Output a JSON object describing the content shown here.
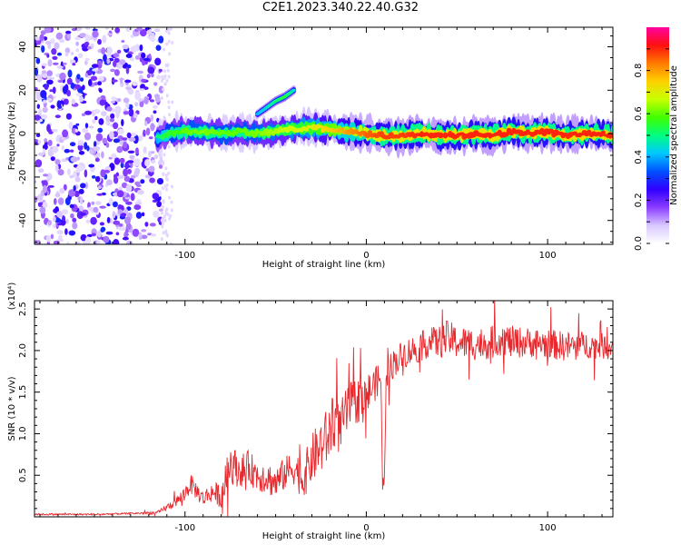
{
  "title": "C2E1.2023.340.22.40.G32",
  "chart_data": [
    {
      "type": "heatmap",
      "xlabel": "Height of straight line (km)",
      "ylabel": "Frequency (Hz)",
      "xlim": [
        -183,
        136
      ],
      "ylim": [
        -51,
        49
      ],
      "xticks": [
        -100,
        0,
        100
      ],
      "yticks": [
        -40,
        -20,
        0,
        20,
        40
      ],
      "colorbar": {
        "label": "Normalized spectral amplitude",
        "range": [
          0,
          1
        ],
        "ticks": [
          "0.0",
          "0.2",
          "0.4",
          "0.6",
          "0.8"
        ],
        "colors": [
          "#ffffff",
          "#d9c8ff",
          "#8a3cff",
          "#3000ff",
          "#0050ff",
          "#00c8ff",
          "#00ff80",
          "#40ff00",
          "#c8ff00",
          "#ffd000",
          "#ff7a00",
          "#ff1010",
          "#ff00a0"
        ]
      },
      "series": [
        {
          "type": "noise-region",
          "x_range": [
            -183,
            -113
          ],
          "frequency_range": [
            -51,
            49
          ],
          "amplitude_range": [
            0.05,
            0.3
          ]
        },
        {
          "type": "ridge",
          "x": [
            -115,
            -110,
            -100,
            -90,
            -80,
            -70,
            -60,
            -50,
            -40,
            -30,
            -20,
            -10,
            0,
            10,
            20,
            30,
            40,
            50,
            60,
            70,
            80,
            90,
            100,
            110,
            120,
            130,
            136
          ],
          "frequency": [
            -2,
            0,
            1,
            1,
            0,
            1,
            0,
            1,
            2,
            3,
            2,
            1,
            0,
            -1,
            -1,
            0,
            -1,
            -1,
            0,
            -1,
            1,
            0,
            1,
            -1,
            0,
            0,
            -1
          ],
          "peak_amplitude": [
            0.5,
            0.55,
            0.6,
            0.62,
            0.6,
            0.6,
            0.62,
            0.65,
            0.68,
            0.7,
            0.75,
            0.8,
            0.85,
            0.88,
            0.88,
            0.9,
            0.9,
            0.9,
            0.9,
            0.9,
            0.9,
            0.9,
            0.9,
            0.9,
            0.9,
            0.9,
            0.9
          ]
        },
        {
          "type": "branch",
          "x": [
            -60,
            -55,
            -50,
            -45,
            -40
          ],
          "frequency": [
            9,
            12,
            15,
            17,
            20
          ],
          "peak_amplitude": [
            0.4,
            0.45,
            0.5,
            0.55,
            0.45
          ]
        }
      ]
    },
    {
      "type": "line",
      "xlabel": "Height of straight line (km)",
      "ylabel": "SNR (10 * v/v)",
      "ylabel_multiplier": "(x10⁴)",
      "xlim": [
        -183,
        136
      ],
      "ylim": [
        0,
        2.6
      ],
      "xticks": [
        -100,
        0,
        100
      ],
      "yticks": [
        0.5,
        1.0,
        1.5,
        2.0,
        2.5
      ],
      "yticklabels": [
        "0.5",
        "1.0",
        "1.5",
        "2.0",
        "2.5"
      ],
      "color": "#e8282d",
      "x": [
        -183,
        -170,
        -150,
        -130,
        -115,
        -105,
        -100,
        -97,
        -90,
        -85,
        -80,
        -75,
        -70,
        -65,
        -60,
        -55,
        -50,
        -45,
        -40,
        -35,
        -30,
        -25,
        -20,
        -18,
        -15,
        -10,
        -5,
        0,
        3,
        5,
        8,
        9,
        10,
        11,
        12,
        15,
        20,
        25,
        30,
        35,
        40,
        45,
        50,
        60,
        70,
        75,
        80,
        90,
        100,
        110,
        120,
        130,
        136
      ],
      "y": [
        0.03,
        0.03,
        0.03,
        0.04,
        0.05,
        0.18,
        0.28,
        0.4,
        0.22,
        0.3,
        0.25,
        0.65,
        0.55,
        0.6,
        0.5,
        0.48,
        0.4,
        0.52,
        0.6,
        0.45,
        0.7,
        0.85,
        1.0,
        1.2,
        1.05,
        1.3,
        1.4,
        1.45,
        1.55,
        1.6,
        1.7,
        0.3,
        0.6,
        1.6,
        1.75,
        1.85,
        1.95,
        2.0,
        2.05,
        2.1,
        2.1,
        2.15,
        2.1,
        2.08,
        2.1,
        2.15,
        2.1,
        2.1,
        2.08,
        2.05,
        2.07,
        2.05,
        2.04
      ],
      "spread": [
        0.01,
        0.01,
        0.01,
        0.01,
        0.02,
        0.06,
        0.1,
        0.12,
        0.1,
        0.12,
        0.15,
        0.25,
        0.2,
        0.2,
        0.2,
        0.2,
        0.2,
        0.2,
        0.22,
        0.25,
        0.3,
        0.35,
        0.35,
        0.35,
        0.3,
        0.3,
        0.28,
        0.25,
        0.25,
        0.2,
        0.2,
        0.1,
        0.15,
        0.2,
        0.18,
        0.18,
        0.18,
        0.18,
        0.18,
        0.18,
        0.2,
        0.22,
        0.2,
        0.2,
        0.2,
        0.2,
        0.2,
        0.18,
        0.18,
        0.18,
        0.16,
        0.16,
        0.15
      ]
    }
  ]
}
